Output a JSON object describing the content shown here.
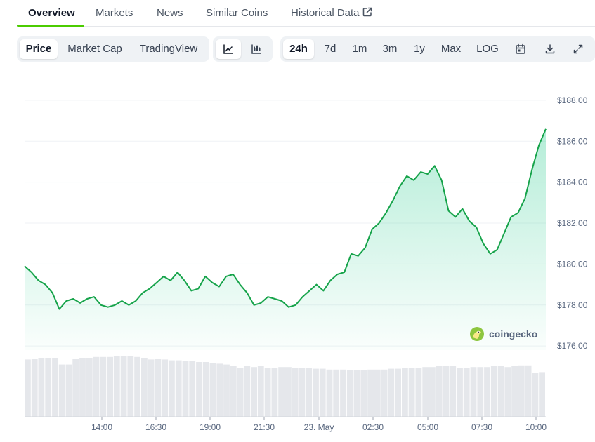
{
  "tabs": [
    {
      "label": "Overview",
      "active": true
    },
    {
      "label": "Markets",
      "active": false
    },
    {
      "label": "News",
      "active": false
    },
    {
      "label": "Similar Coins",
      "active": false
    },
    {
      "label": "Historical Data",
      "active": false,
      "icon": "external-link-icon"
    }
  ],
  "toolbar": {
    "chart_types": [
      {
        "label": "Price",
        "active": true
      },
      {
        "label": "Market Cap",
        "active": false
      },
      {
        "label": "TradingView",
        "active": false
      }
    ],
    "view_icons": [
      {
        "icon": "line-chart-icon",
        "active": true
      },
      {
        "icon": "candlestick-chart-icon",
        "active": false
      }
    ],
    "ranges": [
      {
        "label": "24h",
        "active": true
      },
      {
        "label": "7d",
        "active": false
      },
      {
        "label": "1m",
        "active": false
      },
      {
        "label": "3m",
        "active": false
      },
      {
        "label": "1y",
        "active": false
      },
      {
        "label": "Max",
        "active": false
      },
      {
        "label": "LOG",
        "active": false
      }
    ],
    "action_icons": [
      "calendar-icon",
      "download-icon",
      "fullscreen-icon"
    ]
  },
  "watermark": {
    "text": "coingecko",
    "icon": "coingecko-logo-icon"
  },
  "colors": {
    "line": "#16a34a",
    "area_top": "#16c784",
    "volume": "#e5e7eb",
    "accent": "#4bcc00"
  },
  "chart_data": {
    "type": "area",
    "title": "",
    "xlabel": "",
    "ylabel": "",
    "x_ticks": [
      "14:00",
      "16:30",
      "19:00",
      "21:30",
      "23. May",
      "02:30",
      "05:00",
      "07:30",
      "10:00"
    ],
    "y_ticks": [
      "$176.00",
      "$178.00",
      "$180.00",
      "$182.00",
      "$184.00",
      "$186.00",
      "$188.00"
    ],
    "ylim": [
      175.8,
      188.1
    ],
    "grid": true,
    "series": [
      {
        "values": [
          179.9,
          179.6,
          179.2,
          179.0,
          178.6,
          177.8,
          178.2,
          178.3,
          178.1,
          178.3,
          178.4,
          178.0,
          177.9,
          178.0,
          178.2,
          178.0,
          178.2,
          178.6,
          178.8,
          179.1,
          179.4,
          179.2,
          179.6,
          179.2,
          178.7,
          178.8,
          179.4,
          179.1,
          178.9,
          179.4,
          179.5,
          179.0,
          178.6,
          178.0,
          178.1,
          178.4,
          178.3,
          178.2,
          177.9,
          178.0,
          178.4,
          178.7,
          179.0,
          178.7,
          179.2,
          179.5,
          179.6,
          180.5,
          180.4,
          180.8,
          181.7,
          182.0,
          182.5,
          183.1,
          183.8,
          184.3,
          184.1,
          184.5,
          184.4,
          184.8,
          184.1,
          182.6,
          182.3,
          182.7,
          182.1,
          181.8,
          181.0,
          180.5,
          180.7,
          181.5,
          182.3,
          182.5,
          183.2,
          184.6,
          185.8,
          186.6
        ]
      }
    ],
    "volume": [
      0.68,
      0.69,
      0.7,
      0.7,
      0.7,
      0.62,
      0.62,
      0.69,
      0.7,
      0.7,
      0.71,
      0.71,
      0.71,
      0.72,
      0.72,
      0.72,
      0.71,
      0.7,
      0.68,
      0.69,
      0.68,
      0.67,
      0.67,
      0.66,
      0.66,
      0.65,
      0.65,
      0.64,
      0.63,
      0.62,
      0.6,
      0.58,
      0.6,
      0.59,
      0.6,
      0.58,
      0.58,
      0.59,
      0.59,
      0.58,
      0.58,
      0.58,
      0.57,
      0.57,
      0.56,
      0.56,
      0.56,
      0.55,
      0.55,
      0.55,
      0.56,
      0.56,
      0.56,
      0.57,
      0.57,
      0.58,
      0.58,
      0.58,
      0.59,
      0.59,
      0.6,
      0.6,
      0.6,
      0.58,
      0.58,
      0.59,
      0.59,
      0.59,
      0.6,
      0.6,
      0.59,
      0.6,
      0.61,
      0.61,
      0.52,
      0.53
    ]
  }
}
